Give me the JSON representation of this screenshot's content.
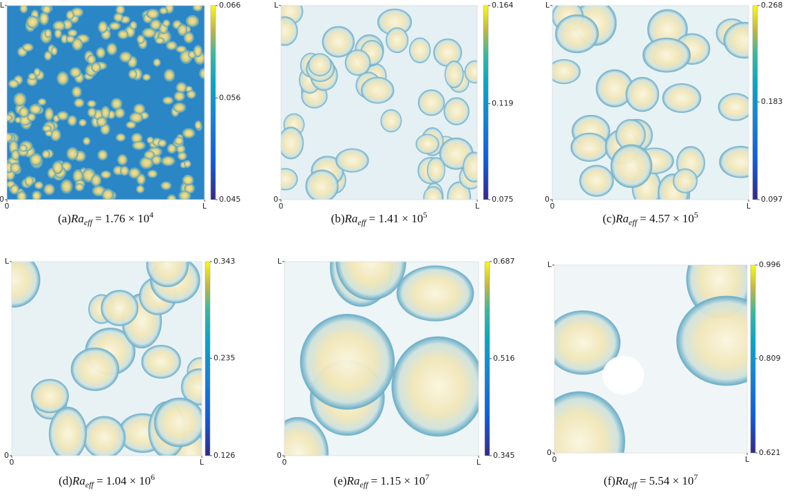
{
  "chart_data": [
    {
      "type": "contour",
      "caption": {
        "label": "(a)",
        "symbol": "Ra",
        "subscript": "eff",
        "text": " = 1.76 × 10",
        "exponent": "4"
      },
      "xlim": [
        0,
        1
      ],
      "xticks": [
        {
          "value": 0,
          "label": "0"
        },
        {
          "value": 1,
          "label": "L"
        }
      ],
      "ylim": [
        0,
        1
      ],
      "yticks": [
        {
          "value": 0,
          "label": "0"
        },
        {
          "value": 1,
          "label": "L"
        }
      ],
      "zlim": [
        0.045,
        0.066
      ],
      "zticks": [
        0.045,
        0.056,
        0.066
      ]
    },
    {
      "type": "contour",
      "caption": {
        "label": "(b)",
        "symbol": "Ra",
        "subscript": "eff",
        "text": " = 1.41 × 10",
        "exponent": "5"
      },
      "xlim": [
        0,
        1
      ],
      "xticks": [
        {
          "value": 0,
          "label": "0"
        },
        {
          "value": 1,
          "label": "L"
        }
      ],
      "ylim": [
        0,
        1
      ],
      "yticks": [
        {
          "value": 0,
          "label": "0"
        },
        {
          "value": 1,
          "label": "L"
        }
      ],
      "zlim": [
        0.075,
        0.164
      ],
      "zticks": [
        0.075,
        0.119,
        0.164
      ]
    },
    {
      "type": "contour",
      "caption": {
        "label": "(c)",
        "symbol": "Ra",
        "subscript": "eff",
        "text": " = 4.57 × 10",
        "exponent": "5"
      },
      "xlim": [
        0,
        1
      ],
      "xticks": [
        {
          "value": 0,
          "label": "0"
        },
        {
          "value": 1,
          "label": "L"
        }
      ],
      "ylim": [
        0,
        1
      ],
      "yticks": [
        {
          "value": 0,
          "label": "0"
        },
        {
          "value": 1,
          "label": "L"
        }
      ],
      "zlim": [
        0.097,
        0.268
      ],
      "zticks": [
        0.097,
        0.183,
        0.268
      ]
    },
    {
      "type": "contour",
      "caption": {
        "label": "(d)",
        "symbol": "Ra",
        "subscript": "eff",
        "text": " = 1.04 × 10",
        "exponent": "6"
      },
      "xlim": [
        0,
        1
      ],
      "xticks": [
        {
          "value": 0,
          "label": "0"
        },
        {
          "value": 1,
          "label": "L"
        }
      ],
      "ylim": [
        0,
        1
      ],
      "yticks": [
        {
          "value": 0,
          "label": "0"
        },
        {
          "value": 1,
          "label": "L"
        }
      ],
      "zlim": [
        0.126,
        0.343
      ],
      "zticks": [
        0.126,
        0.235,
        0.343
      ]
    },
    {
      "type": "contour",
      "caption": {
        "label": "(e)",
        "symbol": "Ra",
        "subscript": "eff",
        "text": " = 1.15 × 10",
        "exponent": "7"
      },
      "xlim": [
        0,
        1
      ],
      "xticks": [
        {
          "value": 0,
          "label": "0"
        },
        {
          "value": 1,
          "label": "L"
        }
      ],
      "ylim": [
        0,
        1
      ],
      "yticks": [
        {
          "value": 0,
          "label": "0"
        },
        {
          "value": 1,
          "label": "L"
        }
      ],
      "zlim": [
        0.345,
        0.687
      ],
      "zticks": [
        0.345,
        0.516,
        0.687
      ]
    },
    {
      "type": "contour",
      "caption": {
        "label": "(f)",
        "symbol": "Ra",
        "subscript": "eff",
        "text": " = 5.54 × 10",
        "exponent": "7"
      },
      "xlim": [
        0,
        1
      ],
      "xticks": [
        {
          "value": 0,
          "label": "0"
        },
        {
          "value": 1,
          "label": "L"
        }
      ],
      "ylim": [
        0,
        1
      ],
      "yticks": [
        {
          "value": 0,
          "label": "0"
        },
        {
          "value": 1,
          "label": "L"
        }
      ],
      "zlim": [
        0.621,
        0.996
      ],
      "zticks": [
        0.621,
        0.809,
        0.996
      ]
    }
  ]
}
